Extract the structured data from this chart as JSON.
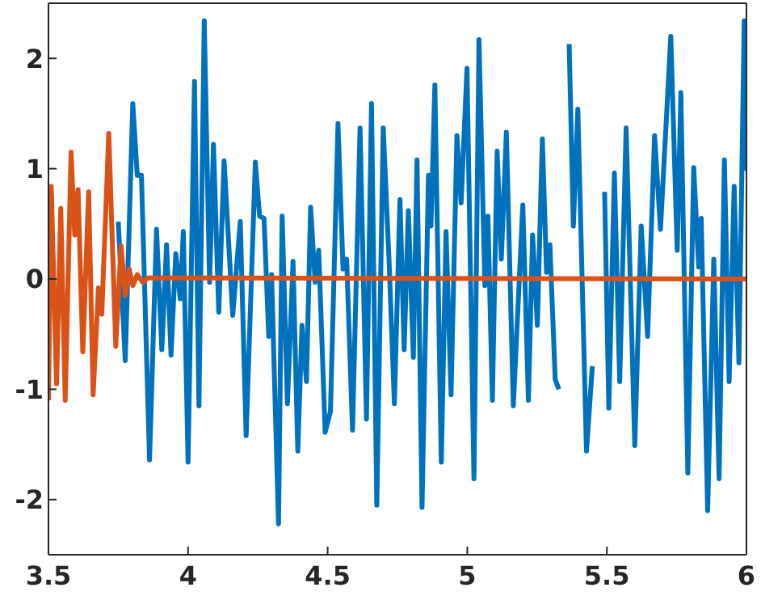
{
  "chart_data": {
    "type": "line",
    "xlim": [
      3.5,
      6
    ],
    "ylim": [
      -2.5,
      2.5
    ],
    "xticks": [
      3.5,
      4,
      4.5,
      5,
      5.5,
      6
    ],
    "yticks": [
      -2,
      -1,
      0,
      1,
      2
    ],
    "marker": "none",
    "line_style": "solid",
    "series": [
      {
        "color": "#0072bd",
        "x": [
          3.75,
          3.775,
          3.802,
          3.818,
          3.833,
          3.862,
          3.887,
          3.906,
          3.923,
          3.939,
          3.956,
          3.972,
          3.983,
          4.0,
          4.023,
          4.039,
          4.058,
          4.077,
          4.091,
          4.11,
          4.129,
          4.16,
          4.187,
          4.208,
          4.241,
          4.256,
          4.272,
          4.289,
          4.299,
          4.324,
          4.337,
          4.356,
          4.376,
          4.393,
          4.408,
          4.424,
          4.439,
          4.455,
          4.468,
          4.491,
          4.51,
          4.537,
          4.555,
          4.568,
          4.589,
          4.616,
          4.639,
          4.657,
          4.676,
          4.699,
          4.72,
          4.739,
          4.759,
          4.774,
          4.789,
          4.807,
          4.82,
          4.838,
          4.861,
          4.87,
          4.884,
          4.907,
          4.924,
          4.942,
          4.963,
          4.978,
          4.999,
          5.024,
          5.042,
          5.063,
          5.074,
          5.09,
          5.107,
          5.122,
          5.14,
          5.165,
          5.199,
          5.219,
          5.234,
          5.251,
          5.269,
          5.284,
          5.296,
          5.315,
          5.328,
          5.344,
          5.365,
          5.38,
          5.396,
          5.427,
          5.448,
          5.469,
          5.492,
          5.507,
          5.527,
          5.546,
          5.569,
          5.6,
          5.623,
          5.646,
          5.671,
          5.692,
          5.729,
          5.752,
          5.765,
          5.79,
          5.811,
          5.829,
          5.838,
          5.861,
          5.883,
          5.902,
          5.921,
          5.938,
          5.956,
          5.973,
          5.992,
          6.0
        ],
        "values": [
          0.52,
          -0.74,
          1.59,
          0.94,
          0.94,
          -1.64,
          0.45,
          -0.64,
          0.31,
          -0.69,
          0.23,
          -0.18,
          0.43,
          -1.66,
          1.79,
          -1.15,
          2.34,
          -0.03,
          1.22,
          -0.3,
          1.07,
          -0.33,
          0.52,
          -1.42,
          1.06,
          0.57,
          0.55,
          -0.52,
          0.04,
          -2.22,
          0.57,
          -1.13,
          0.16,
          -1.56,
          -0.42,
          -0.93,
          0.65,
          -0.03,
          0.26,
          -1.39,
          -1.2,
          1.41,
          0.09,
          0.18,
          -1.37,
          1.37,
          -1.27,
          1.59,
          -2.05,
          1.37,
          0.16,
          -1.13,
          0.72,
          -0.64,
          0.62,
          -0.71,
          1.08,
          -2.07,
          0.94,
          0.48,
          1.76,
          -1.66,
          0.43,
          -1.05,
          1.3,
          0.69,
          1.91,
          -1.81,
          2.17,
          -0.06,
          0.57,
          -1.1,
          1.16,
          0.18,
          1.33,
          -1.15,
          0.67,
          -1.1,
          0.4,
          -0.42,
          1.27,
          0.06,
          0.31,
          -0.91,
          -1.0,
          null,
          2.13,
          0.48,
          1.54,
          -1.56,
          -0.79,
          null,
          0.79,
          -1.17,
          0.96,
          -0.93,
          1.37,
          -1.51,
          0.48,
          -0.52,
          1.3,
          0.45,
          2.2,
          0.26,
          1.69,
          -1.76,
          1.01,
          0.11,
          0.55,
          -2.1,
          0.18,
          -1.81,
          1.08,
          -0.93,
          0.84,
          -0.76,
          2.34,
          0.98
        ]
      },
      {
        "color": "#d95319",
        "x": [
          3.5,
          3.51,
          3.529,
          3.544,
          3.56,
          3.581,
          3.594,
          3.606,
          3.623,
          3.644,
          3.66,
          3.679,
          3.691,
          3.716,
          3.741,
          3.76,
          3.775,
          3.789,
          3.802,
          3.818,
          3.837,
          3.856,
          6.0
        ],
        "values": [
          -1.1,
          0.84,
          -0.95,
          0.64,
          -1.1,
          1.15,
          0.4,
          0.81,
          -0.66,
          0.79,
          -1.05,
          -0.08,
          -0.32,
          1.32,
          -0.61,
          0.3,
          -0.15,
          0.09,
          -0.06,
          0.04,
          -0.03,
          0.01,
          0
        ]
      }
    ]
  }
}
